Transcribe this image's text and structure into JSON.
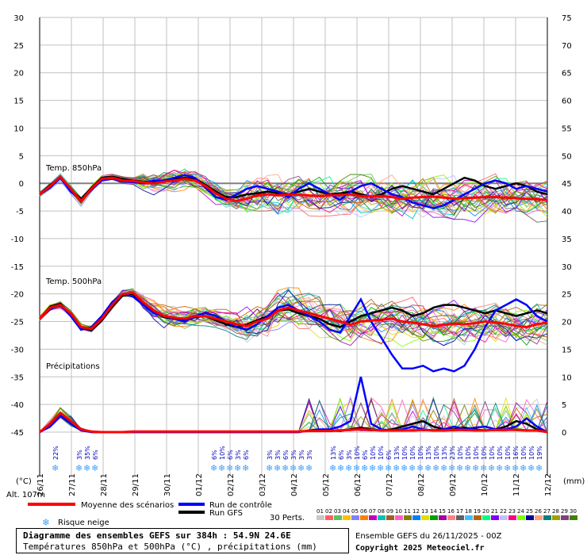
{
  "chart_data": {
    "type": "line",
    "left_axis": {
      "unit_label": "(°C)",
      "ticks": [
        30,
        25,
        20,
        15,
        10,
        5,
        0,
        -5,
        -10,
        -15,
        -20,
        -25,
        -30,
        -35,
        -40,
        -45
      ]
    },
    "right_axis": {
      "unit_label": "(mm)",
      "ticks": [
        75,
        70,
        65,
        60,
        55,
        50,
        45,
        40,
        35,
        30,
        25,
        20,
        15,
        10,
        5,
        0
      ]
    },
    "x_dates": [
      "26/11",
      "27/11",
      "28/11",
      "29/11",
      "30/11",
      "01/12",
      "02/12",
      "03/12",
      "04/12",
      "05/12",
      "06/12",
      "07/12",
      "08/12",
      "09/12",
      "10/12",
      "11/12",
      "12/12"
    ],
    "altitude_label": "Alt. 107m",
    "panel_labels": {
      "t850": "Temp. 850hPa",
      "t500": "Temp. 500hPa",
      "precip": "Précipitations"
    },
    "series": [
      {
        "name": "Moyenne des scénarios",
        "color": "#ff0000",
        "t850": [
          -2.0,
          -0.5,
          1.2,
          -1.0,
          -3.2,
          -1.0,
          0.8,
          1.0,
          0.5,
          0.4,
          0.2,
          0.0,
          0.3,
          0.5,
          0.8,
          0.5,
          -0.5,
          -1.8,
          -2.8,
          -3.2,
          -2.8,
          -2.2,
          -2.0,
          -2.2,
          -2.0,
          -2.1,
          -2.2,
          -2.3,
          -2.2,
          -2.1,
          -2.0,
          -2.3,
          -2.4,
          -2.3,
          -2.5,
          -2.8,
          -2.6,
          -2.5,
          -2.4,
          -2.6,
          -2.8,
          -2.7,
          -2.6,
          -2.5,
          -2.5,
          -2.6,
          -2.7,
          -2.8,
          -2.9,
          -3.0
        ],
        "t500": [
          -24.5,
          -22.5,
          -22.0,
          -23.5,
          -26.0,
          -26.3,
          -24.5,
          -22.0,
          -20.0,
          -19.8,
          -21.5,
          -23.0,
          -24.0,
          -24.3,
          -24.5,
          -24.0,
          -24.0,
          -24.5,
          -25.0,
          -25.5,
          -25.8,
          -25.0,
          -24.5,
          -23.0,
          -22.5,
          -23.0,
          -23.5,
          -24.0,
          -24.5,
          -25.0,
          -25.6,
          -25.0,
          -24.8,
          -24.7,
          -24.5,
          -25.0,
          -25.2,
          -25.5,
          -25.8,
          -25.6,
          -25.4,
          -25.5,
          -25.3,
          -25.0,
          -25.2,
          -25.4,
          -25.8,
          -26.0,
          -25.5,
          -25.2
        ],
        "precip": [
          0.0,
          1.5,
          3.5,
          2.0,
          0.5,
          0.1,
          0.0,
          0.0,
          0.0,
          0.1,
          0.1,
          0.1,
          0.1,
          0.1,
          0.1,
          0.1,
          0.1,
          0.1,
          0.1,
          0.1,
          0.1,
          0.1,
          0.1,
          0.1,
          0.1,
          0.1,
          0.2,
          0.2,
          0.2,
          0.3,
          0.4,
          0.5,
          0.4,
          0.3,
          0.3,
          0.3,
          0.3,
          0.4,
          0.3,
          0.3,
          0.4,
          0.4,
          0.3,
          0.3,
          0.4,
          0.4,
          0.4,
          0.3,
          0.3,
          0.0
        ]
      },
      {
        "name": "Run de contrôle",
        "color": "#0000ff",
        "t850": [
          -2.0,
          -0.8,
          1.0,
          -1.5,
          -3.0,
          -1.2,
          0.5,
          0.8,
          0.3,
          0.2,
          0.0,
          0.5,
          0.5,
          1.0,
          1.5,
          1.0,
          -0.8,
          -2.5,
          -3.0,
          -2.0,
          -1.0,
          -0.5,
          -1.0,
          -1.5,
          -2.5,
          -1.0,
          0.0,
          -1.0,
          -2.0,
          -3.0,
          -1.5,
          -0.5,
          0.0,
          -1.0,
          -2.0,
          -2.5,
          -3.5,
          -4.0,
          -4.5,
          -4.0,
          -3.0,
          -2.0,
          -1.0,
          0.0,
          0.5,
          0.0,
          -1.0,
          -0.5,
          -1.0,
          -1.5
        ],
        "t500": [
          -24.5,
          -22.8,
          -22.0,
          -24.0,
          -26.5,
          -26.0,
          -24.0,
          -21.5,
          -20.0,
          -20.5,
          -22.0,
          -23.5,
          -24.0,
          -24.5,
          -25.0,
          -24.0,
          -23.5,
          -24.0,
          -25.0,
          -26.0,
          -26.5,
          -25.5,
          -24.0,
          -22.5,
          -22.0,
          -23.0,
          -24.0,
          -25.0,
          -26.5,
          -27.0,
          -24.0,
          -21.0,
          -25.0,
          -28.0,
          -31.0,
          -33.5,
          -33.5,
          -33.0,
          -34.0,
          -33.5,
          -34.0,
          -33.0,
          -30.0,
          -26.0,
          -23.0,
          -22.0,
          -21.0,
          -22.0,
          -24.0,
          -25.0
        ],
        "precip": [
          0.0,
          1.0,
          3.0,
          1.5,
          0.3,
          0.0,
          0.0,
          0.0,
          0.0,
          0.0,
          0.0,
          0.0,
          0.0,
          0.0,
          0.0,
          0.0,
          0.0,
          0.0,
          0.0,
          0.0,
          0.0,
          0.0,
          0.0,
          0.0,
          0.0,
          0.0,
          0.3,
          0.5,
          0.5,
          1.0,
          2.0,
          10.0,
          1.5,
          0.5,
          0.3,
          0.5,
          1.0,
          0.5,
          0.3,
          0.5,
          1.0,
          0.5,
          0.8,
          1.0,
          0.5,
          0.5,
          1.0,
          2.5,
          1.0,
          0.0
        ]
      },
      {
        "name": "Run GFS",
        "color": "#000000",
        "t850": [
          -2.0,
          -0.3,
          1.0,
          -1.2,
          -2.8,
          -0.8,
          1.0,
          1.2,
          0.8,
          0.5,
          0.3,
          0.2,
          0.5,
          0.8,
          1.0,
          0.8,
          -0.3,
          -1.5,
          -2.5,
          -2.5,
          -2.0,
          -1.8,
          -1.5,
          -1.8,
          -2.0,
          -1.5,
          -1.0,
          -1.5,
          -2.0,
          -1.8,
          -1.5,
          -2.0,
          -2.5,
          -2.0,
          -1.0,
          -0.5,
          -1.0,
          -1.5,
          -2.0,
          -1.0,
          0.0,
          1.0,
          0.5,
          -0.5,
          -1.0,
          -0.5,
          0.0,
          -0.5,
          -1.5,
          -2.0
        ],
        "t500": [
          -24.5,
          -22.3,
          -21.8,
          -23.8,
          -26.2,
          -26.5,
          -24.8,
          -22.3,
          -20.3,
          -20.0,
          -21.8,
          -23.2,
          -24.2,
          -24.5,
          -24.8,
          -24.2,
          -24.0,
          -24.8,
          -25.5,
          -26.0,
          -25.5,
          -24.8,
          -24.0,
          -23.0,
          -22.8,
          -23.5,
          -24.0,
          -24.5,
          -25.5,
          -26.0,
          -25.0,
          -24.0,
          -23.5,
          -23.0,
          -22.5,
          -23.0,
          -24.0,
          -23.5,
          -22.5,
          -22.0,
          -22.0,
          -22.5,
          -23.0,
          -23.5,
          -23.0,
          -23.5,
          -24.0,
          -23.5,
          -23.0,
          -23.5
        ],
        "precip": [
          0.0,
          1.2,
          3.2,
          1.8,
          0.4,
          0.0,
          0.0,
          0.0,
          0.0,
          0.0,
          0.0,
          0.0,
          0.0,
          0.0,
          0.0,
          0.0,
          0.0,
          0.0,
          0.0,
          0.0,
          0.0,
          0.0,
          0.0,
          0.0,
          0.0,
          0.0,
          0.3,
          0.4,
          0.3,
          0.2,
          0.5,
          0.8,
          0.5,
          0.3,
          0.5,
          1.0,
          1.5,
          2.0,
          1.0,
          0.5,
          0.5,
          0.8,
          0.5,
          0.3,
          0.5,
          1.0,
          2.0,
          1.5,
          0.5,
          0.0
        ]
      }
    ],
    "snow_risk": [
      {
        "date_index": 0.5,
        "label": "22%"
      },
      {
        "date_index": 1.25,
        "label": "3%"
      },
      {
        "date_index": 1.5,
        "label": "35%"
      },
      {
        "date_index": 1.75,
        "label": "6%"
      },
      {
        "date_index": 5.5,
        "label": "6%"
      },
      {
        "date_index": 5.75,
        "label": "10%"
      },
      {
        "date_index": 6.0,
        "label": "6%"
      },
      {
        "date_index": 6.25,
        "label": "3%"
      },
      {
        "date_index": 6.5,
        "label": "6%"
      },
      {
        "date_index": 7.25,
        "label": "3%"
      },
      {
        "date_index": 7.5,
        "label": "3%"
      },
      {
        "date_index": 7.75,
        "label": "6%"
      },
      {
        "date_index": 8.0,
        "label": "3%"
      },
      {
        "date_index": 8.25,
        "label": "3%"
      },
      {
        "date_index": 8.5,
        "label": "3%"
      },
      {
        "date_index": 9.25,
        "label": "13%"
      },
      {
        "date_index": 9.5,
        "label": "6%"
      },
      {
        "date_index": 9.75,
        "label": "3%"
      },
      {
        "date_index": 10.0,
        "label": "10%"
      },
      {
        "date_index": 10.25,
        "label": "6%"
      },
      {
        "date_index": 10.5,
        "label": "10%"
      },
      {
        "date_index": 10.75,
        "label": "10%"
      },
      {
        "date_index": 11.0,
        "label": "6%"
      },
      {
        "date_index": 11.25,
        "label": "13%"
      },
      {
        "date_index": 11.5,
        "label": "10%"
      },
      {
        "date_index": 11.75,
        "label": "10%"
      },
      {
        "date_index": 12.0,
        "label": "10%"
      },
      {
        "date_index": 12.25,
        "label": "13%"
      },
      {
        "date_index": 12.5,
        "label": "10%"
      },
      {
        "date_index": 12.75,
        "label": "13%"
      },
      {
        "date_index": 13.0,
        "label": "23%"
      },
      {
        "date_index": 13.25,
        "label": "10%"
      },
      {
        "date_index": 13.5,
        "label": "10%"
      },
      {
        "date_index": 13.75,
        "label": "10%"
      },
      {
        "date_index": 14.0,
        "label": "10%"
      },
      {
        "date_index": 14.25,
        "label": "10%"
      },
      {
        "date_index": 14.5,
        "label": "10%"
      },
      {
        "date_index": 14.75,
        "label": "10%"
      },
      {
        "date_index": 15.0,
        "label": "16%"
      },
      {
        "date_index": 15.25,
        "label": "10%"
      },
      {
        "date_index": 15.5,
        "label": "10%"
      },
      {
        "date_index": 15.75,
        "label": "19%"
      }
    ],
    "perturbations": {
      "count_label": "30 Perts.",
      "numbers": [
        "01",
        "02",
        "03",
        "04",
        "05",
        "06",
        "07",
        "08",
        "09",
        "10",
        "11",
        "12",
        "13",
        "14",
        "15",
        "16",
        "17",
        "18",
        "19",
        "20",
        "21",
        "22",
        "23",
        "24",
        "25",
        "26",
        "27",
        "28",
        "29",
        "30"
      ],
      "colors": [
        "#c8c8c8",
        "#ff6060",
        "#60c060",
        "#ffc000",
        "#8080ff",
        "#ff8000",
        "#c000c0",
        "#00c0c0",
        "#a06020",
        "#ff60c0",
        "#808000",
        "#0080ff",
        "#e0e000",
        "#00a000",
        "#a000a0",
        "#ff8080",
        "#606060",
        "#40c0ff",
        "#c06000",
        "#00ff80",
        "#8000ff",
        "#c0c0ff",
        "#ff0080",
        "#80ff00",
        "#0000a0",
        "#ffa080",
        "#008080",
        "#a0a000",
        "#804080",
        "#408000"
      ]
    },
    "grid": true
  },
  "legend": {
    "mean": "Moyenne des scénarios",
    "control": "Run de contrôle",
    "gfs": "Run GFS",
    "snow": "Risque neige"
  },
  "caption": {
    "line1": "Diagramme des ensembles GEFS sur 384h : 54.9N 24.6E",
    "line2": "Températures 850hPa et 500hPa (°C) , précipitations (mm)"
  },
  "credits": {
    "run": "Ensemble GEFS du 26/11/2025 - 00Z",
    "copyright": "Copyright 2025 Meteociel.fr"
  },
  "colors": {
    "grid": "#c0c0c0",
    "mean": "#ff0000",
    "control": "#0000ff",
    "gfs": "#000000",
    "snow_icon": "#3fa0ff"
  }
}
